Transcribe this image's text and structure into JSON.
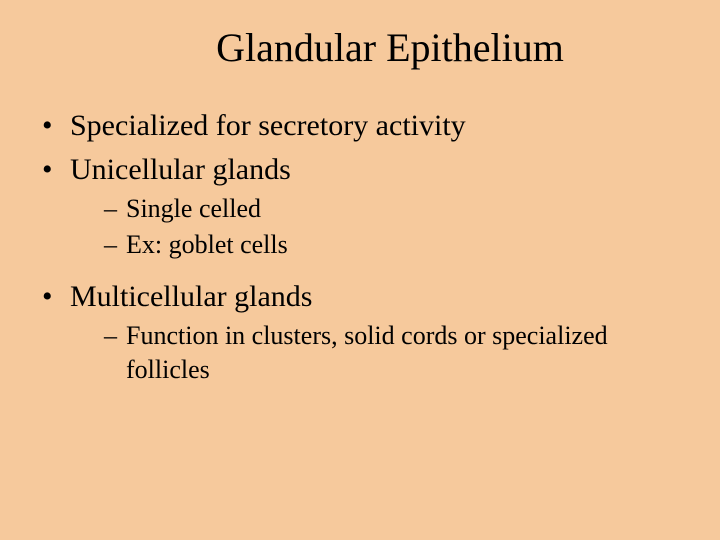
{
  "slide": {
    "background_color": "#f6c99c",
    "text_color": "#000000",
    "font_family": "Times New Roman",
    "title": "Glandular Epithelium",
    "title_fontsize": 40,
    "body_fontsize": 30,
    "sub_fontsize": 26,
    "bullets": [
      {
        "text": "Specialized for secretory activity",
        "sub": []
      },
      {
        "text": "Unicellular glands",
        "sub": [
          "Single celled",
          "Ex: goblet cells"
        ]
      },
      {
        "text": "Multicellular glands",
        "sub": [
          "Function in clusters, solid cords or specialized follicles"
        ]
      }
    ]
  }
}
